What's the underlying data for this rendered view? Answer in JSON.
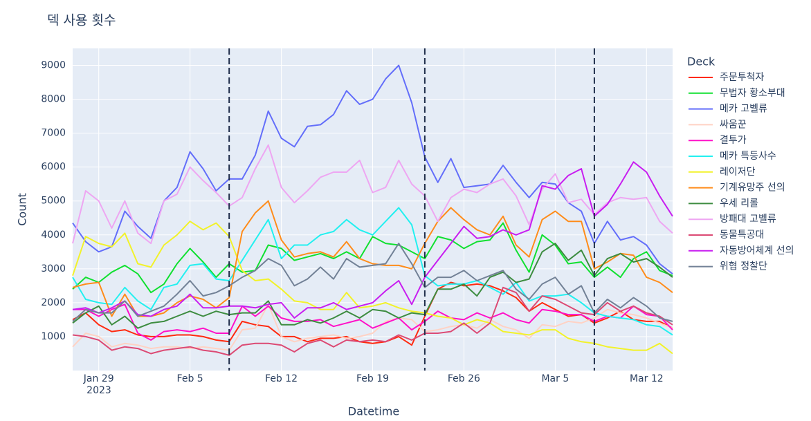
{
  "chart_data": {
    "type": "line",
    "title": "덱 사용 횟수",
    "x_label": "Datetime",
    "y_label": "Count",
    "legend_title": "Deck",
    "x": [
      "2023-01-27",
      "2023-01-28",
      "2023-01-29",
      "2023-01-30",
      "2023-01-31",
      "2023-02-01",
      "2023-02-02",
      "2023-02-03",
      "2023-02-04",
      "2023-02-05",
      "2023-02-06",
      "2023-02-07",
      "2023-02-08",
      "2023-02-09",
      "2023-02-10",
      "2023-02-11",
      "2023-02-12",
      "2023-02-13",
      "2023-02-14",
      "2023-02-15",
      "2023-02-16",
      "2023-02-17",
      "2023-02-18",
      "2023-02-19",
      "2023-02-20",
      "2023-02-21",
      "2023-02-22",
      "2023-02-23",
      "2023-02-24",
      "2023-02-25",
      "2023-02-26",
      "2023-02-27",
      "2023-02-28",
      "2023-03-01",
      "2023-03-02",
      "2023-03-03",
      "2023-03-04",
      "2023-03-05",
      "2023-03-06",
      "2023-03-07",
      "2023-03-08",
      "2023-03-09",
      "2023-03-10",
      "2023-03-11",
      "2023-03-12",
      "2023-03-13",
      "2023-03-14"
    ],
    "xlim": [
      "2023-01-27",
      "2023-03-14"
    ],
    "xticks": [
      {
        "value": "2023-01-29",
        "label": "Jan 29"
      },
      {
        "value": "2023-02-05",
        "label": "Feb 5"
      },
      {
        "value": "2023-02-12",
        "label": "Feb 12"
      },
      {
        "value": "2023-02-19",
        "label": "Feb 19"
      },
      {
        "value": "2023-02-26",
        "label": "Feb 26"
      },
      {
        "value": "2023-03-05",
        "label": "Mar 5"
      },
      {
        "value": "2023-03-12",
        "label": "Mar 12"
      }
    ],
    "x_year_label": "2023",
    "ylim": [
      0,
      9500
    ],
    "yticks": [
      1000,
      2000,
      3000,
      4000,
      5000,
      6000,
      7000,
      8000,
      9000
    ],
    "grid": true,
    "vlines": [
      "2023-02-08",
      "2023-02-23",
      "2023-03-08"
    ],
    "series": [
      {
        "name": "주문투척자",
        "color": "#ff2a10",
        "values": [
          1500,
          1700,
          1350,
          1150,
          1200,
          1050,
          1000,
          1000,
          1050,
          1050,
          1000,
          900,
          850,
          1450,
          1350,
          1300,
          1000,
          1000,
          850,
          950,
          950,
          1000,
          850,
          800,
          850,
          1000,
          750,
          1600,
          2400,
          2600,
          2500,
          2550,
          2500,
          2350,
          2150,
          1750,
          2000,
          1800,
          1600,
          1650,
          1400,
          1550,
          1750,
          1500,
          1450,
          1450,
          1250
        ]
      },
      {
        "name": "무법자 황소부대",
        "color": "#10e030",
        "values": [
          2400,
          2750,
          2600,
          2900,
          3100,
          2850,
          2300,
          2550,
          3150,
          3600,
          3200,
          2750,
          3150,
          2900,
          2950,
          3700,
          3600,
          3250,
          3350,
          3450,
          3300,
          3500,
          3300,
          3950,
          3750,
          3700,
          3500,
          3300,
          3950,
          3850,
          3600,
          3800,
          3850,
          4350,
          3550,
          2900,
          4000,
          3700,
          3150,
          3200,
          2750,
          3050,
          2750,
          3300,
          3500,
          2950,
          2800
        ]
      },
      {
        "name": "메카 고벨류",
        "color": "#636efa",
        "values": [
          4350,
          3800,
          3500,
          3650,
          4700,
          4250,
          3900,
          5000,
          5400,
          6450,
          5950,
          5300,
          5650,
          5650,
          6350,
          7650,
          6850,
          6600,
          7200,
          7250,
          7550,
          8250,
          7850,
          8000,
          8600,
          9000,
          7900,
          6300,
          5550,
          6250,
          5400,
          5450,
          5500,
          6050,
          5550,
          5100,
          5550,
          5500,
          4950,
          4700,
          3750,
          4400,
          3850,
          3950,
          3700,
          3150,
          2850
        ]
      },
      {
        "name": "싸움꾼",
        "color": "#ffd2c4",
        "values": [
          700,
          1100,
          1000,
          700,
          800,
          750,
          650,
          700,
          700,
          650,
          700,
          650,
          600,
          1200,
          1250,
          1950,
          1000,
          850,
          950,
          1000,
          1050,
          950,
          1000,
          1100,
          1450,
          1550,
          1500,
          1150,
          1200,
          1300,
          1350,
          1250,
          1500,
          1300,
          1200,
          950,
          1350,
          1300,
          1450,
          1400,
          1550,
          1800,
          1700,
          1650,
          1550,
          1400,
          1250
        ]
      },
      {
        "name": "결투가",
        "color": "#ff10c8",
        "values": [
          1800,
          1800,
          1600,
          1800,
          1950,
          1100,
          900,
          1150,
          1200,
          1150,
          1250,
          1100,
          1100,
          1900,
          1600,
          1900,
          1550,
          1450,
          1450,
          1500,
          1300,
          1400,
          1500,
          1250,
          1400,
          1550,
          1200,
          1450,
          1750,
          1550,
          1500,
          1700,
          1550,
          1700,
          1500,
          1400,
          1800,
          1750,
          1650,
          1650,
          1450,
          1600,
          1550,
          1900,
          1650,
          1600,
          1200
        ]
      },
      {
        "name": "메카 특등사수",
        "color": "#22f0f0",
        "values": [
          2750,
          2100,
          2000,
          1950,
          2450,
          2050,
          1800,
          2450,
          2550,
          3100,
          3150,
          2700,
          2650,
          3250,
          3850,
          4450,
          3300,
          3700,
          3700,
          4000,
          4100,
          4450,
          4150,
          4000,
          4400,
          4800,
          4300,
          2800,
          2500,
          2550,
          2550,
          2650,
          2450,
          2250,
          2600,
          2050,
          2200,
          2200,
          2250,
          2000,
          1700,
          1600,
          1550,
          1500,
          1350,
          1300,
          1050
        ]
      },
      {
        "name": "레이저단",
        "color": "#f2f22a",
        "values": [
          2800,
          3950,
          3750,
          3650,
          4050,
          3150,
          3050,
          3700,
          4000,
          4400,
          4150,
          4350,
          3950,
          2950,
          2650,
          2700,
          2400,
          2050,
          2000,
          1800,
          1800,
          2300,
          1850,
          1900,
          2000,
          1850,
          1750,
          1700,
          1600,
          1550,
          1350,
          1500,
          1400,
          1150,
          1100,
          1050,
          1200,
          1200,
          950,
          850,
          800,
          700,
          650,
          600,
          600,
          800,
          500
        ]
      },
      {
        "name": "기계유망주 선의",
        "color": "#ff8c1a",
        "values": [
          2450,
          2550,
          2600,
          1600,
          2250,
          1600,
          1600,
          1700,
          2000,
          2200,
          2100,
          1850,
          2150,
          4100,
          4650,
          5000,
          3850,
          3350,
          3450,
          3500,
          3350,
          3800,
          3300,
          3150,
          3100,
          3100,
          3000,
          3750,
          4400,
          4800,
          4450,
          4150,
          4000,
          4550,
          3700,
          3350,
          4450,
          4700,
          4400,
          4400,
          3000,
          3200,
          3450,
          3400,
          2750,
          2600,
          2300
        ]
      },
      {
        "name": "우세 리롤",
        "color": "#3d8c40",
        "values": [
          1400,
          1700,
          1900,
          1350,
          1600,
          1250,
          1400,
          1450,
          1600,
          1750,
          1600,
          1750,
          1650,
          1700,
          1700,
          2050,
          1350,
          1350,
          1500,
          1400,
          1550,
          1750,
          1550,
          1800,
          1750,
          1550,
          1700,
          1650,
          2400,
          2400,
          2550,
          2200,
          2750,
          2900,
          2600,
          2700,
          3500,
          3750,
          3250,
          3550,
          2800,
          3300,
          3450,
          3200,
          3300,
          3050,
          2750
        ]
      },
      {
        "name": "방패대 고벨류",
        "color": "#eea6f2",
        "values": [
          3750,
          5300,
          5000,
          4200,
          5000,
          4050,
          3750,
          5000,
          5200,
          6000,
          5600,
          5250,
          4850,
          5100,
          5950,
          6650,
          5400,
          4950,
          5300,
          5700,
          5850,
          5850,
          6200,
          5250,
          5400,
          6200,
          5500,
          5150,
          4400,
          5100,
          5350,
          5250,
          5500,
          5650,
          5150,
          4300,
          5350,
          5800,
          4950,
          5050,
          4600,
          4950,
          5100,
          5050,
          5100,
          4400,
          4050
        ]
      },
      {
        "name": "동물특공대",
        "color": "#dc4a74",
        "values": [
          1050,
          1000,
          900,
          600,
          700,
          650,
          500,
          600,
          650,
          700,
          600,
          550,
          450,
          750,
          800,
          800,
          750,
          550,
          800,
          900,
          700,
          900,
          850,
          900,
          850,
          1050,
          900,
          1100,
          1100,
          1150,
          1400,
          1100,
          1400,
          2450,
          2300,
          1750,
          2200,
          2100,
          1900,
          1700,
          1650,
          2000,
          1750,
          1900,
          1700,
          1600,
          1350
        ]
      },
      {
        "name": "자동방어체계 선의",
        "color": "#c81ef0",
        "values": [
          1800,
          1850,
          1700,
          1850,
          2050,
          1650,
          1600,
          1800,
          1900,
          2250,
          1850,
          1850,
          1900,
          1900,
          1850,
          1950,
          2000,
          1550,
          1850,
          1850,
          2000,
          1800,
          1900,
          2000,
          2350,
          2650,
          1950,
          2750,
          3250,
          3750,
          4250,
          3900,
          3950,
          4150,
          4000,
          4150,
          5450,
          5350,
          5750,
          5950,
          4550,
          4900,
          5500,
          6150,
          5850,
          5150,
          4550
        ]
      },
      {
        "name": "위협 정찰단",
        "color": "#728196",
        "values": [
          1450,
          1800,
          1700,
          1700,
          2050,
          1600,
          1750,
          1900,
          2250,
          2650,
          2200,
          2300,
          2500,
          2750,
          2950,
          3300,
          3100,
          2500,
          2700,
          3050,
          2700,
          3300,
          3050,
          3100,
          3150,
          3750,
          3150,
          2450,
          2750,
          2750,
          2950,
          2650,
          2800,
          2950,
          2400,
          2100,
          2550,
          2750,
          2250,
          2500,
          1700,
          2100,
          1850,
          2150,
          1900,
          1550,
          1450
        ]
      }
    ]
  }
}
